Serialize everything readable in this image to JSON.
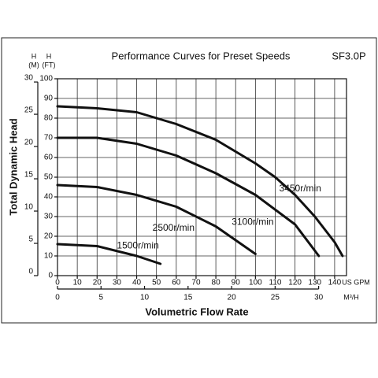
{
  "chart_data": {
    "type": "line",
    "title": "Performance Curves for Preset Speeds",
    "model": "SF3.0P",
    "y_label": "Total Dynamic Head",
    "x_label": "Volumetric Flow Rate",
    "y_unit": [
      "H",
      "(FT)"
    ],
    "y2_unit": [
      "H",
      "(M)"
    ],
    "x_unit": "US GPM",
    "x2_unit": "M³/H",
    "xlim": [
      0,
      146
    ],
    "xticks": [
      0,
      10,
      20,
      30,
      40,
      50,
      60,
      70,
      80,
      90,
      100,
      110,
      120,
      130,
      140
    ],
    "ylim": [
      0,
      100
    ],
    "yticks": [
      0,
      10,
      20,
      30,
      40,
      50,
      60,
      70,
      80,
      90,
      100
    ],
    "y2lim": [
      0,
      30.5
    ],
    "y2ticks": [
      0,
      5,
      10,
      15,
      20,
      25,
      30
    ],
    "x2lim": [
      0,
      33.2
    ],
    "x2ticks": [
      0,
      5,
      10,
      15,
      20,
      25,
      30
    ],
    "grid": true,
    "series": [
      {
        "name": "3450r/min",
        "color": "#111111",
        "x": [
          0,
          20,
          40,
          50,
          60,
          70,
          80,
          90,
          100,
          110,
          120,
          130,
          140,
          144
        ],
        "values": [
          86,
          85,
          83,
          80,
          77,
          73,
          69,
          63,
          57,
          50,
          41,
          30,
          17,
          10
        ]
      },
      {
        "name": "3100r/min",
        "color": "#111111",
        "x": [
          0,
          20,
          40,
          60,
          80,
          100,
          120,
          132
        ],
        "values": [
          70,
          70,
          67,
          61,
          52,
          41,
          26,
          10
        ]
      },
      {
        "name": "2500r/min",
        "color": "#111111",
        "x": [
          0,
          20,
          40,
          60,
          80,
          100
        ],
        "values": [
          46,
          45,
          41,
          35,
          25,
          11
        ]
      },
      {
        "name": "1500r/min",
        "color": "#111111",
        "x": [
          0,
          20,
          40,
          52
        ],
        "values": [
          16,
          15,
          10,
          6
        ]
      }
    ]
  }
}
